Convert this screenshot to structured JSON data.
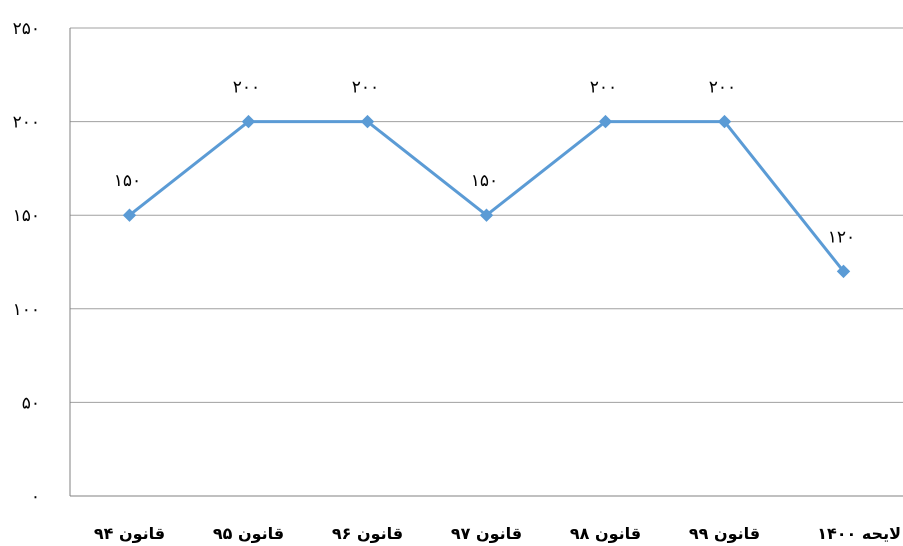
{
  "chart_data": {
    "type": "line",
    "title": "",
    "xlabel": "",
    "ylabel": "",
    "categories": [
      "قانون ۹۴",
      "قانون ۹۵",
      "قانون ۹۶",
      "قانون ۹۷",
      "قانون ۹۸",
      "قانون ۹۹",
      "لایحه ۱۴۰۰"
    ],
    "series": [
      {
        "values": [
          150,
          200,
          200,
          150,
          200,
          200,
          120
        ],
        "value_labels": [
          "۱۵۰",
          "۲۰۰",
          "۲۰۰",
          "۱۵۰",
          "۲۰۰",
          "۲۰۰",
          "۱۲۰"
        ],
        "color": "#5B9BD5",
        "marker": "diamond"
      }
    ],
    "ylim": [
      0,
      250
    ],
    "yticks": [
      0,
      50,
      100,
      150,
      200,
      250
    ],
    "ytick_labels": [
      "۰",
      "۵۰",
      "۱۰۰",
      "۱۵۰",
      "۲۰۰",
      "۲۵۰"
    ],
    "grid": true,
    "legend": "none",
    "gridline_color": "#a0a0a0",
    "axis_color": "#808080"
  }
}
